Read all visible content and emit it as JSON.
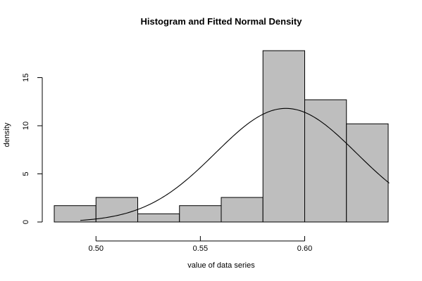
{
  "chart_data": {
    "type": "bar",
    "title": "Histogram and Fitted Normal Density",
    "xlabel": "value of data series",
    "ylabel": "density",
    "xlim": [
      0.47,
      0.645
    ],
    "ylim": [
      0,
      19
    ],
    "x_ticks": [
      {
        "value": 0.5,
        "label": "0.50"
      },
      {
        "value": 0.55,
        "label": "0.55"
      },
      {
        "value": 0.6,
        "label": "0.60"
      }
    ],
    "y_ticks": [
      {
        "value": 0,
        "label": "0"
      },
      {
        "value": 5,
        "label": "5"
      },
      {
        "value": 10,
        "label": "10"
      },
      {
        "value": 15,
        "label": "15"
      }
    ],
    "bins": [
      {
        "start": 0.48,
        "end": 0.5,
        "density": 1.7
      },
      {
        "start": 0.5,
        "end": 0.52,
        "density": 2.55
      },
      {
        "start": 0.52,
        "end": 0.54,
        "density": 0.85
      },
      {
        "start": 0.54,
        "end": 0.56,
        "density": 1.7
      },
      {
        "start": 0.56,
        "end": 0.58,
        "density": 2.55
      },
      {
        "start": 0.58,
        "end": 0.6,
        "density": 17.8
      },
      {
        "start": 0.6,
        "end": 0.62,
        "density": 12.7
      },
      {
        "start": 0.62,
        "end": 0.64,
        "density": 10.2
      }
    ],
    "fitted_normal": {
      "mean": 0.591,
      "sd": 0.0338,
      "x_from": 0.4925,
      "x_to": 0.6405
    },
    "grid": false,
    "legend": "none"
  }
}
